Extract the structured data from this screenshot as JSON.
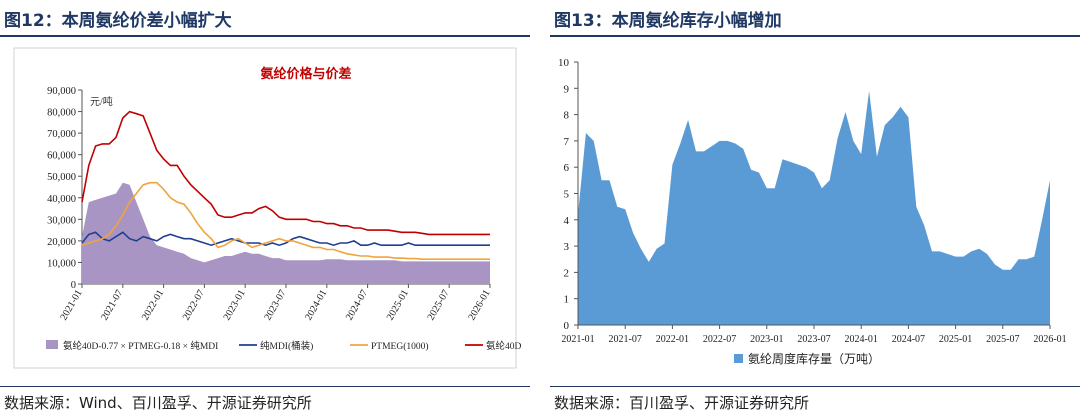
{
  "figures": [
    {
      "title": "图12：本周氨纶价差小幅扩大",
      "source": "数据来源：Wind、百川盈孚、开源证券研究所"
    },
    {
      "title": "图13：本周氨纶库存小幅增加",
      "source": "数据来源：百川盈孚、开源证券研究所"
    }
  ],
  "chart_data": [
    {
      "type": "line",
      "title": "氨纶价格与价差",
      "ylabel": "元/吨",
      "ylim": [
        0,
        90000
      ],
      "yticks": [
        "0",
        "10,000",
        "20,000",
        "30,000",
        "40,000",
        "50,000",
        "60,000",
        "70,000",
        "80,000",
        "90,000"
      ],
      "xticks": [
        "2021-01",
        "2021-07",
        "2022-01",
        "2022-07",
        "2023-01",
        "2023-07",
        "2024-01",
        "2024-07",
        "2025-01",
        "2025-07",
        "2026-01"
      ],
      "x": [
        "2021-01",
        "2021-02",
        "2021-03",
        "2021-04",
        "2021-05",
        "2021-06",
        "2021-07",
        "2021-08",
        "2021-09",
        "2021-10",
        "2021-11",
        "2021-12",
        "2022-01",
        "2022-02",
        "2022-03",
        "2022-04",
        "2022-05",
        "2022-06",
        "2022-07",
        "2022-08",
        "2022-09",
        "2022-10",
        "2022-11",
        "2022-12",
        "2023-01",
        "2023-02",
        "2023-03",
        "2023-04",
        "2023-05",
        "2023-06",
        "2023-07",
        "2023-08",
        "2023-09",
        "2023-10",
        "2023-11",
        "2023-12",
        "2024-01",
        "2024-02",
        "2024-03",
        "2024-04",
        "2024-05",
        "2024-06",
        "2024-07",
        "2024-08",
        "2024-09",
        "2024-10",
        "2024-11",
        "2024-12",
        "2025-01",
        "2025-02",
        "2025-03",
        "2025-04",
        "2025-05",
        "2025-06",
        "2025-07",
        "2025-08",
        "2025-09",
        "2025-10",
        "2025-11",
        "2025-12",
        "2026-01"
      ],
      "series": [
        {
          "name": "氨纶40D-0.77×PTMEG-0.18×纯MDI",
          "kind": "area",
          "color": "#a895c4",
          "values": [
            22000,
            38000,
            39000,
            40000,
            41000,
            42000,
            47000,
            46000,
            38000,
            30000,
            22000,
            18000,
            17000,
            16000,
            15000,
            14000,
            12000,
            11000,
            10000,
            11000,
            12000,
            13000,
            13000,
            14000,
            15000,
            14000,
            14000,
            13000,
            12000,
            12000,
            11000,
            11000,
            11000,
            11000,
            11000,
            11000,
            11500,
            11500,
            11500,
            11000,
            11000,
            11000,
            11000,
            11000,
            11000,
            11000,
            11000,
            10500,
            10500,
            10500,
            10500,
            10500,
            10500,
            10500,
            10500,
            10500,
            10500,
            10500,
            10500,
            10500,
            10500
          ]
        },
        {
          "name": "纯MDI(桶装)",
          "kind": "line",
          "color": "#1f3f8f",
          "values": [
            19000,
            23000,
            24000,
            21000,
            20000,
            22000,
            24000,
            21000,
            20000,
            22000,
            21000,
            20000,
            22000,
            23000,
            22000,
            21000,
            21000,
            20000,
            19000,
            18000,
            19000,
            20000,
            21000,
            20000,
            19000,
            19000,
            19000,
            18000,
            19000,
            18000,
            19000,
            21000,
            22000,
            21000,
            20000,
            19000,
            19000,
            18000,
            19000,
            19000,
            20000,
            18000,
            18000,
            19000,
            18000,
            18000,
            18000,
            18000,
            19000,
            18000,
            18000,
            18000,
            18000,
            18000,
            18000,
            18000,
            18000,
            18000,
            18000,
            18000,
            18000
          ]
        },
        {
          "name": "PTMEG(1000)",
          "kind": "line",
          "color": "#f2a33c",
          "values": [
            18000,
            19000,
            20000,
            21000,
            23000,
            27000,
            32000,
            38000,
            42000,
            46000,
            47000,
            47000,
            44000,
            40000,
            38000,
            37000,
            33000,
            28000,
            24000,
            21000,
            17000,
            18000,
            20000,
            21000,
            19000,
            17000,
            18000,
            19000,
            20000,
            21000,
            20000,
            20000,
            19000,
            18000,
            17000,
            17000,
            16000,
            16000,
            15000,
            14000,
            13500,
            13000,
            13000,
            12500,
            12500,
            12500,
            12000,
            12000,
            11800,
            11800,
            11500,
            11500,
            11500,
            11500,
            11500,
            11500,
            11500,
            11500,
            11500,
            11500,
            11500
          ]
        },
        {
          "name": "氨纶40D",
          "kind": "line",
          "color": "#c00000",
          "values": [
            38000,
            55000,
            64000,
            65000,
            65000,
            68000,
            77000,
            80000,
            79000,
            78000,
            70000,
            62000,
            58000,
            55000,
            55000,
            50000,
            46000,
            43000,
            40000,
            37000,
            32000,
            31000,
            31000,
            32000,
            33000,
            33000,
            35000,
            36000,
            34000,
            31000,
            30000,
            30000,
            30000,
            30000,
            29000,
            29000,
            28000,
            28000,
            27000,
            27000,
            26000,
            26000,
            25000,
            25000,
            25000,
            25000,
            24500,
            24000,
            24000,
            24000,
            23500,
            23000,
            23000,
            23000,
            23000,
            23000,
            23000,
            23000,
            23000,
            23000,
            23000
          ]
        }
      ],
      "legend": [
        "氨纶40D-0.77 × PTMEG-0.18 × 纯MDI",
        "纯MDI(桶装)",
        "PTMEG(1000)",
        "氨纶40D"
      ]
    },
    {
      "type": "area",
      "ylim": [
        0,
        10
      ],
      "yticks": [
        "0",
        "1",
        "2",
        "3",
        "4",
        "5",
        "6",
        "7",
        "8",
        "9",
        "10"
      ],
      "xticks": [
        "2021-01",
        "2021-07",
        "2022-01",
        "2022-07",
        "2023-01",
        "2023-07",
        "2024-01",
        "2024-07",
        "2025-01",
        "2025-07",
        "2026-01"
      ],
      "x": [
        "2021-01",
        "2021-02",
        "2021-03",
        "2021-04",
        "2021-05",
        "2021-06",
        "2021-07",
        "2021-08",
        "2021-09",
        "2021-10",
        "2021-11",
        "2021-12",
        "2022-01",
        "2022-02",
        "2022-03",
        "2022-04",
        "2022-05",
        "2022-06",
        "2022-07",
        "2022-08",
        "2022-09",
        "2022-10",
        "2022-11",
        "2022-12",
        "2023-01",
        "2023-02",
        "2023-03",
        "2023-04",
        "2023-05",
        "2023-06",
        "2023-07",
        "2023-08",
        "2023-09",
        "2023-10",
        "2023-11",
        "2023-12",
        "2024-01",
        "2024-02",
        "2024-03",
        "2024-04",
        "2024-05",
        "2024-06",
        "2024-07",
        "2024-08",
        "2024-09",
        "2024-10",
        "2024-11",
        "2024-12",
        "2025-01",
        "2025-02",
        "2025-03",
        "2025-04",
        "2025-05",
        "2025-06",
        "2025-07",
        "2025-08",
        "2025-09",
        "2025-10",
        "2025-11",
        "2025-12",
        "2026-01"
      ],
      "series": [
        {
          "name": "氨纶周度库存量（万吨）",
          "color": "#5b9bd5",
          "values": [
            4.2,
            7.3,
            7.0,
            5.5,
            5.5,
            4.5,
            4.4,
            3.5,
            2.9,
            2.4,
            2.9,
            3.1,
            6.1,
            6.9,
            7.8,
            6.6,
            6.6,
            6.8,
            7.0,
            7.0,
            6.9,
            6.7,
            5.9,
            5.8,
            5.2,
            5.2,
            6.3,
            6.2,
            6.1,
            6.0,
            5.8,
            5.2,
            5.5,
            7.1,
            8.1,
            7.0,
            6.5,
            8.9,
            6.4,
            7.6,
            7.9,
            8.3,
            7.9,
            4.5,
            3.8,
            2.8,
            2.8,
            2.7,
            2.6,
            2.6,
            2.8,
            2.9,
            2.7,
            2.3,
            2.1,
            2.1,
            2.5,
            2.5,
            2.6,
            4.0,
            5.5
          ]
        }
      ],
      "legend": [
        "氨纶周度库存量（万吨）"
      ]
    }
  ]
}
